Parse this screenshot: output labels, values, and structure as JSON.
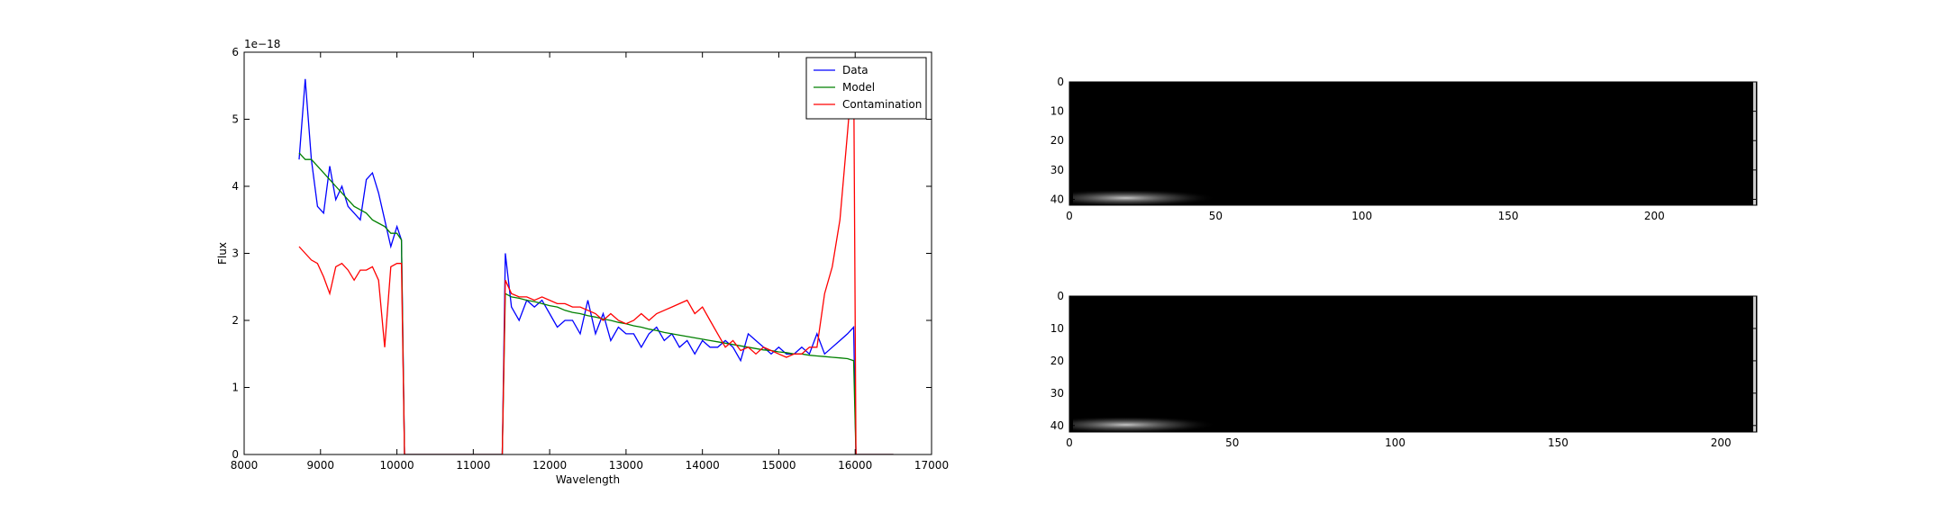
{
  "chart_data": [
    {
      "type": "line",
      "xlabel": "Wavelength",
      "ylabel": "Flux",
      "offset_label": "1e−18",
      "x": [
        8720,
        8800,
        8880,
        8960,
        9040,
        9120,
        9200,
        9280,
        9360,
        9440,
        9520,
        9600,
        9680,
        9760,
        9840,
        9920,
        10000,
        10060,
        10100,
        10500,
        11000,
        11380,
        11420,
        11500,
        11600,
        11700,
        11800,
        11900,
        12000,
        12100,
        12200,
        12300,
        12400,
        12500,
        12600,
        12700,
        12800,
        12900,
        13000,
        13100,
        13200,
        13300,
        13400,
        13500,
        13600,
        13700,
        13800,
        13900,
        14000,
        14100,
        14200,
        14300,
        14400,
        14500,
        14600,
        14700,
        14800,
        14900,
        15000,
        15100,
        15200,
        15300,
        15400,
        15500,
        15600,
        15700,
        15800,
        15900,
        15980,
        16010,
        16500
      ],
      "series": [
        {
          "name": "Data",
          "color": "#0000ff",
          "values": [
            4.4,
            5.6,
            4.4,
            3.7,
            3.6,
            4.3,
            3.8,
            4.0,
            3.7,
            3.6,
            3.5,
            4.1,
            4.2,
            3.9,
            3.5,
            3.1,
            3.4,
            3.2,
            0,
            0,
            0,
            0,
            3.0,
            2.2,
            2.0,
            2.3,
            2.2,
            2.3,
            2.1,
            1.9,
            2.0,
            2.0,
            1.8,
            2.3,
            1.8,
            2.1,
            1.7,
            1.9,
            1.8,
            1.8,
            1.6,
            1.8,
            1.9,
            1.7,
            1.8,
            1.6,
            1.7,
            1.5,
            1.7,
            1.6,
            1.6,
            1.7,
            1.6,
            1.4,
            1.8,
            1.7,
            1.6,
            1.5,
            1.6,
            1.5,
            1.5,
            1.6,
            1.5,
            1.8,
            1.5,
            1.6,
            1.7,
            1.8,
            1.9,
            0,
            0
          ]
        },
        {
          "name": "Model",
          "color": "#008000",
          "values": [
            4.5,
            4.4,
            4.4,
            4.3,
            4.2,
            4.1,
            4.0,
            3.9,
            3.8,
            3.7,
            3.65,
            3.6,
            3.5,
            3.45,
            3.4,
            3.3,
            3.3,
            3.2,
            0,
            0,
            0,
            0,
            2.4,
            2.35,
            2.33,
            2.3,
            2.28,
            2.25,
            2.22,
            2.2,
            2.15,
            2.12,
            2.1,
            2.07,
            2.05,
            2.02,
            2.0,
            1.97,
            1.95,
            1.92,
            1.9,
            1.87,
            1.85,
            1.82,
            1.8,
            1.78,
            1.76,
            1.74,
            1.72,
            1.7,
            1.68,
            1.66,
            1.64,
            1.62,
            1.6,
            1.58,
            1.56,
            1.55,
            1.53,
            1.52,
            1.5,
            1.5,
            1.48,
            1.47,
            1.46,
            1.45,
            1.44,
            1.43,
            1.4,
            0,
            0
          ]
        },
        {
          "name": "Contamination",
          "color": "#ff0000",
          "values": [
            3.1,
            3.0,
            2.9,
            2.85,
            2.65,
            2.4,
            2.8,
            2.85,
            2.75,
            2.6,
            2.75,
            2.75,
            2.8,
            2.6,
            1.6,
            2.8,
            2.85,
            2.85,
            0,
            0,
            0,
            0,
            2.6,
            2.4,
            2.35,
            2.35,
            2.3,
            2.35,
            2.3,
            2.25,
            2.25,
            2.2,
            2.2,
            2.15,
            2.1,
            2.0,
            2.1,
            2.0,
            1.95,
            2.0,
            2.1,
            2.0,
            2.1,
            2.15,
            2.2,
            2.25,
            2.3,
            2.1,
            2.2,
            2.0,
            1.8,
            1.6,
            1.7,
            1.55,
            1.6,
            1.5,
            1.6,
            1.55,
            1.5,
            1.45,
            1.5,
            1.5,
            1.6,
            1.6,
            2.4,
            2.8,
            3.5,
            4.8,
            5.9,
            0,
            0
          ]
        }
      ],
      "xlim": [
        8000,
        17000
      ],
      "xticks": [
        8000,
        9000,
        10000,
        11000,
        12000,
        13000,
        14000,
        15000,
        16000,
        17000
      ],
      "ylim": [
        0,
        6
      ],
      "yticks": [
        0,
        1,
        2,
        3,
        4,
        5,
        6
      ],
      "legend": "upper right"
    },
    {
      "type": "image",
      "xlim": [
        0,
        235
      ],
      "xticks": [
        0,
        50,
        100,
        150,
        200
      ],
      "ylim": [
        0,
        42
      ],
      "yticks": [
        0,
        10,
        20,
        30,
        40
      ]
    },
    {
      "type": "image",
      "xlim": [
        0,
        211
      ],
      "xticks": [
        0,
        50,
        100,
        150,
        200
      ],
      "ylim": [
        0,
        42
      ],
      "yticks": [
        0,
        10,
        20,
        30,
        40
      ]
    }
  ]
}
